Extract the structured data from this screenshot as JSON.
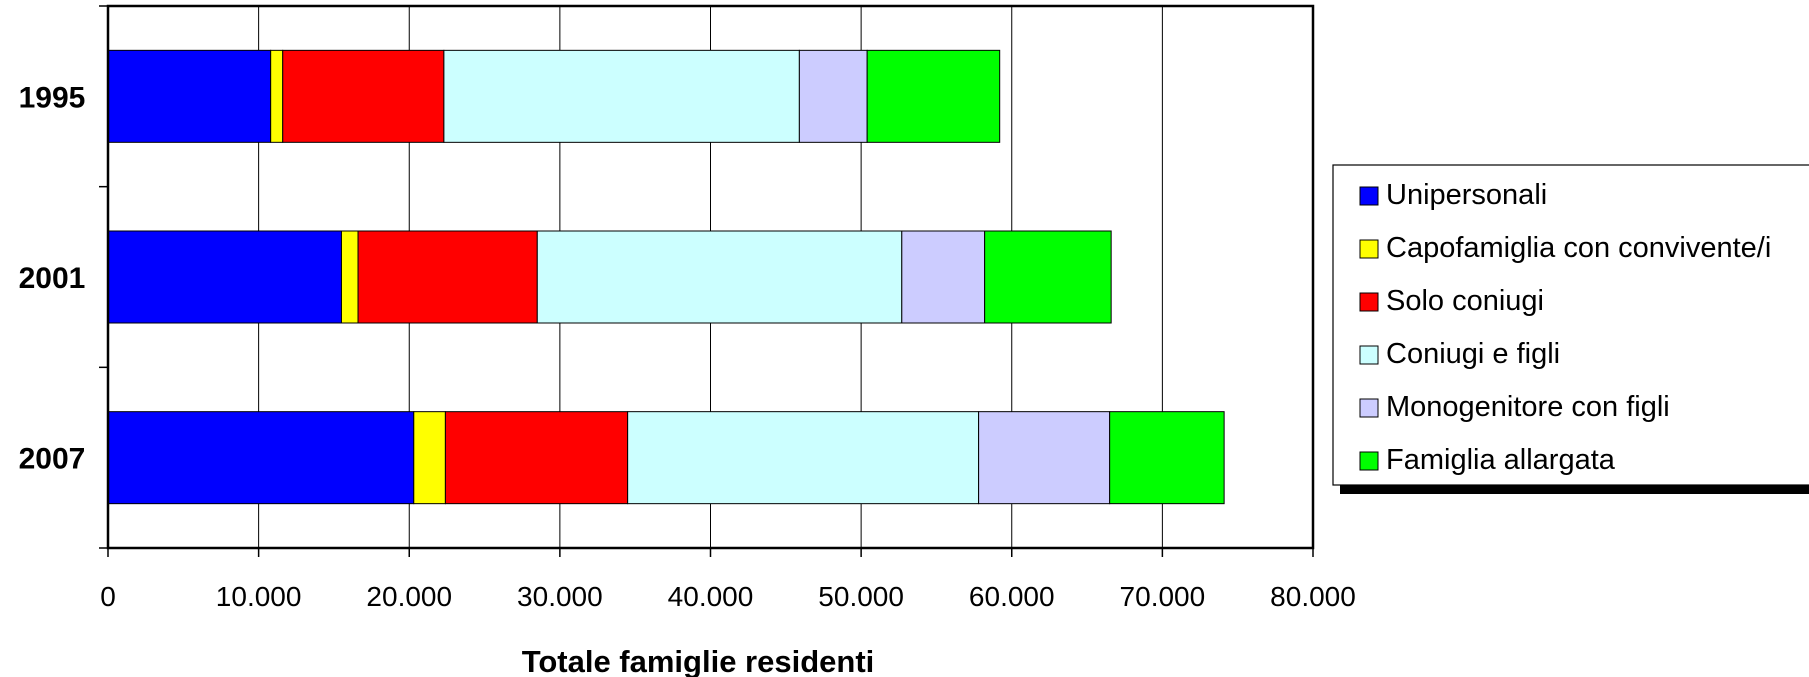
{
  "chart_data": {
    "type": "bar",
    "orientation": "horizontal",
    "stacked": true,
    "categories": [
      "1995",
      "2001",
      "2007"
    ],
    "series": [
      {
        "name": "Unipersonali",
        "color": "#0000FF",
        "values": [
          10800,
          15500,
          20300
        ]
      },
      {
        "name": "Capofamiglia con convivente/i",
        "color": "#FFFF00",
        "values": [
          800,
          1100,
          2100
        ]
      },
      {
        "name": "Solo coniugi",
        "color": "#FF0000",
        "values": [
          10700,
          11900,
          12100
        ]
      },
      {
        "name": "Coniugi e figli",
        "color": "#CCFFFF",
        "values": [
          23600,
          24200,
          23300
        ]
      },
      {
        "name": "Monogenitore con figli",
        "color": "#CCCCFF",
        "values": [
          4500,
          5500,
          8700
        ]
      },
      {
        "name": "Famiglia allargata",
        "color": "#00FF00",
        "values": [
          8800,
          8400,
          7600
        ]
      }
    ],
    "xlim": [
      0,
      80000
    ],
    "xticks": [
      0,
      10000,
      20000,
      30000,
      40000,
      50000,
      60000,
      70000,
      80000
    ],
    "xtick_labels": [
      "0",
      "10.000",
      "20.000",
      "30.000",
      "40.000",
      "50.000",
      "60.000",
      "70.000",
      "80.000"
    ],
    "xlabel": "Totale famiglie residenti",
    "grid": "vertical",
    "legend_position": "right"
  }
}
